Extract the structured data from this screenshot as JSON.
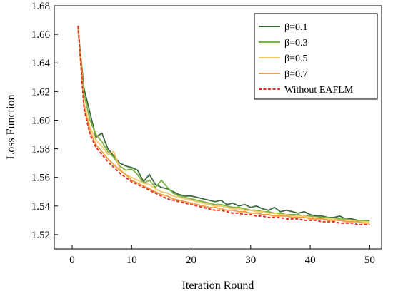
{
  "chart_data": {
    "type": "line",
    "title": "",
    "xlabel": "Iteration Round",
    "ylabel": "Loss Function",
    "xlim": [
      -3,
      52
    ],
    "ylim": [
      1.51,
      1.68
    ],
    "x_ticks": [
      0,
      10,
      20,
      30,
      40,
      50
    ],
    "y_ticks": [
      1.52,
      1.54,
      1.56,
      1.58,
      1.6,
      1.62,
      1.64,
      1.66,
      1.68
    ],
    "x_tick_labels": [
      "0",
      "10",
      "20",
      "30",
      "40",
      "50"
    ],
    "y_tick_labels": [
      "1.52",
      "1.54",
      "1.56",
      "1.58",
      "1.60",
      "1.62",
      "1.64",
      "1.66",
      "1.68"
    ],
    "grid": false,
    "legend_position": "top-right",
    "x": [
      1,
      2,
      3,
      4,
      5,
      6,
      7,
      8,
      9,
      10,
      11,
      12,
      13,
      14,
      15,
      16,
      17,
      18,
      19,
      20,
      21,
      22,
      23,
      24,
      25,
      26,
      27,
      28,
      29,
      30,
      31,
      32,
      33,
      34,
      35,
      36,
      37,
      38,
      39,
      40,
      41,
      42,
      43,
      44,
      45,
      46,
      47,
      48,
      49,
      50
    ],
    "series": [
      {
        "name": "β=0.1",
        "color": "#3d6b3f",
        "dash": "solid",
        "values": [
          1.663,
          1.622,
          1.605,
          1.588,
          1.591,
          1.58,
          1.575,
          1.57,
          1.568,
          1.567,
          1.565,
          1.557,
          1.562,
          1.555,
          1.553,
          1.552,
          1.55,
          1.548,
          1.547,
          1.547,
          1.546,
          1.545,
          1.544,
          1.543,
          1.544,
          1.541,
          1.542,
          1.54,
          1.541,
          1.539,
          1.54,
          1.538,
          1.537,
          1.539,
          1.536,
          1.537,
          1.536,
          1.535,
          1.536,
          1.534,
          1.533,
          1.533,
          1.532,
          1.532,
          1.533,
          1.531,
          1.531,
          1.53,
          1.53,
          1.53
        ]
      },
      {
        "name": "β=0.3",
        "color": "#7ab33e",
        "dash": "solid",
        "values": [
          1.665,
          1.618,
          1.6,
          1.59,
          1.585,
          1.578,
          1.574,
          1.568,
          1.565,
          1.566,
          1.562,
          1.556,
          1.558,
          1.553,
          1.558,
          1.553,
          1.549,
          1.547,
          1.546,
          1.545,
          1.544,
          1.543,
          1.542,
          1.541,
          1.541,
          1.54,
          1.539,
          1.539,
          1.538,
          1.537,
          1.537,
          1.536,
          1.536,
          1.535,
          1.535,
          1.534,
          1.534,
          1.534,
          1.533,
          1.533,
          1.532,
          1.532,
          1.532,
          1.531,
          1.531,
          1.531,
          1.53,
          1.53,
          1.53,
          1.529
        ]
      },
      {
        "name": "β=0.5",
        "color": "#f5c86b",
        "dash": "solid",
        "values": [
          1.664,
          1.612,
          1.595,
          1.586,
          1.582,
          1.576,
          1.578,
          1.566,
          1.562,
          1.56,
          1.558,
          1.556,
          1.555,
          1.552,
          1.55,
          1.549,
          1.547,
          1.546,
          1.545,
          1.544,
          1.543,
          1.542,
          1.541,
          1.54,
          1.54,
          1.539,
          1.538,
          1.538,
          1.537,
          1.537,
          1.536,
          1.536,
          1.535,
          1.535,
          1.534,
          1.534,
          1.533,
          1.533,
          1.533,
          1.532,
          1.532,
          1.531,
          1.531,
          1.531,
          1.53,
          1.53,
          1.53,
          1.529,
          1.529,
          1.529
        ]
      },
      {
        "name": "β=0.7",
        "color": "#f0a040",
        "dash": "solid",
        "values": [
          1.666,
          1.61,
          1.592,
          1.583,
          1.578,
          1.573,
          1.569,
          1.565,
          1.562,
          1.558,
          1.556,
          1.554,
          1.552,
          1.55,
          1.548,
          1.547,
          1.545,
          1.544,
          1.543,
          1.542,
          1.541,
          1.54,
          1.539,
          1.539,
          1.538,
          1.537,
          1.537,
          1.536,
          1.536,
          1.535,
          1.535,
          1.534,
          1.534,
          1.533,
          1.533,
          1.533,
          1.532,
          1.532,
          1.532,
          1.531,
          1.531,
          1.531,
          1.53,
          1.53,
          1.53,
          1.529,
          1.529,
          1.529,
          1.528,
          1.528
        ]
      },
      {
        "name": "Without EAFLM",
        "color": "#e0302a",
        "dash": "dashed",
        "values": [
          1.666,
          1.608,
          1.59,
          1.581,
          1.576,
          1.571,
          1.567,
          1.563,
          1.56,
          1.557,
          1.555,
          1.553,
          1.551,
          1.549,
          1.547,
          1.545,
          1.544,
          1.543,
          1.542,
          1.541,
          1.54,
          1.539,
          1.538,
          1.537,
          1.537,
          1.536,
          1.535,
          1.535,
          1.534,
          1.534,
          1.533,
          1.533,
          1.532,
          1.532,
          1.532,
          1.531,
          1.531,
          1.531,
          1.53,
          1.53,
          1.53,
          1.529,
          1.529,
          1.529,
          1.528,
          1.528,
          1.528,
          1.527,
          1.527,
          1.527
        ]
      }
    ]
  }
}
